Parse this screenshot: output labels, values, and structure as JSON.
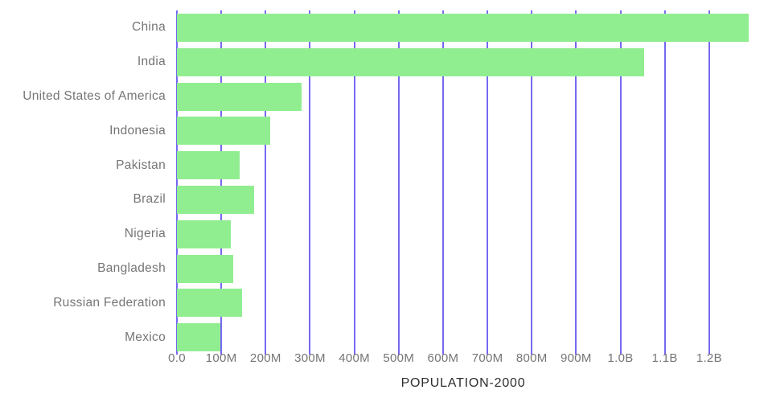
{
  "chart_data": {
    "type": "bar",
    "orientation": "horizontal",
    "title": "",
    "xlabel": "POPULATION-2000",
    "ylabel": "",
    "categories": [
      "China",
      "India",
      "United States of America",
      "Indonesia",
      "Pakistan",
      "Brazil",
      "Nigeria",
      "Bangladesh",
      "Russian Federation",
      "Mexico"
    ],
    "values": [
      1290000000,
      1053000000,
      281000000,
      211000000,
      141000000,
      174000000,
      121000000,
      127000000,
      146000000,
      98000000
    ],
    "xlim": [
      0,
      1300000000
    ],
    "grid": true,
    "legend": "none",
    "xticks": [
      {
        "value": 0,
        "label": "0.0"
      },
      {
        "value": 100000000,
        "label": "100M"
      },
      {
        "value": 200000000,
        "label": "200M"
      },
      {
        "value": 300000000,
        "label": "300M"
      },
      {
        "value": 400000000,
        "label": "400M"
      },
      {
        "value": 500000000,
        "label": "500M"
      },
      {
        "value": 600000000,
        "label": "600M"
      },
      {
        "value": 700000000,
        "label": "700M"
      },
      {
        "value": 800000000,
        "label": "800M"
      },
      {
        "value": 900000000,
        "label": "900M"
      },
      {
        "value": 1000000000,
        "label": "1.0B"
      },
      {
        "value": 1100000000,
        "label": "1.1B"
      },
      {
        "value": 1200000000,
        "label": "1.2B"
      }
    ],
    "colors": {
      "bar": "#90ee90",
      "grid": "#7569f0",
      "label": "#757575",
      "axis_title": "#2e2e2e",
      "bg": "#ffffff"
    }
  }
}
